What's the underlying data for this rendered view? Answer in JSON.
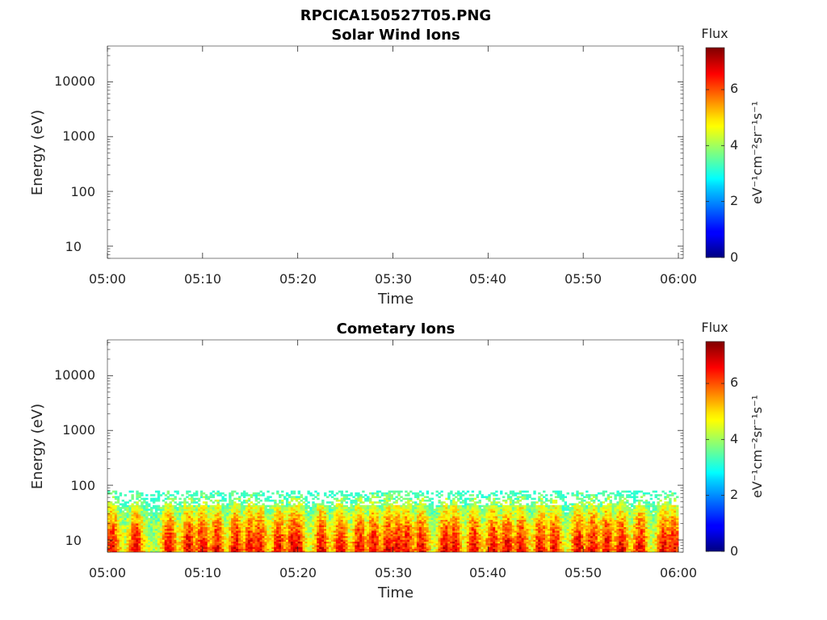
{
  "figure_title": "RPCICA150527T05.PNG",
  "chart_data": [
    {
      "type": "heatmap",
      "title": "Solar Wind Ions",
      "xlabel": "Time",
      "ylabel": "Energy (eV)",
      "x_ticks": [
        "05:00",
        "05:10",
        "05:20",
        "05:30",
        "05:40",
        "05:50",
        "06:00"
      ],
      "y_ticks": [
        "10",
        "100",
        "1000",
        "10000"
      ],
      "y_scale": "log",
      "ylim": [
        6,
        45000
      ],
      "xlim": [
        "05:00",
        "06:00"
      ],
      "colorbar": {
        "label": "Flux",
        "unit": "eV⁻¹cm⁻²sr⁻¹s⁻¹",
        "ticks": [
          "0",
          "2",
          "4",
          "6"
        ],
        "range": [
          0,
          7.5
        ],
        "colormap": "jet"
      },
      "data_present": false
    },
    {
      "type": "heatmap",
      "title": "Cometary Ions",
      "xlabel": "Time",
      "ylabel": "Energy (eV)",
      "x_ticks": [
        "05:00",
        "05:10",
        "05:20",
        "05:30",
        "05:40",
        "05:50",
        "06:00"
      ],
      "y_ticks": [
        "10",
        "100",
        "1000",
        "10000"
      ],
      "y_scale": "log",
      "ylim": [
        6,
        45000
      ],
      "xlim": [
        "05:00",
        "06:00"
      ],
      "colorbar": {
        "label": "Flux",
        "unit": "eV⁻¹cm⁻²sr⁻¹s⁻¹",
        "ticks": [
          "0",
          "2",
          "4",
          "6"
        ],
        "range": [
          0,
          7.5
        ],
        "colormap": "jet"
      },
      "data_present": true,
      "energy_range_eV": [
        6,
        80
      ],
      "peak_minutes": [
        0.5,
        3,
        6.5,
        8.5,
        10,
        11.5,
        13.5,
        15,
        16,
        18,
        19.5,
        20,
        22.5,
        24.5,
        26.5,
        28,
        29.5,
        30.5,
        31.5,
        33,
        35.5,
        36.5,
        38.5,
        40.5,
        42,
        43.5,
        45.5,
        47,
        49.5,
        51,
        52.5,
        54,
        56,
        58.5,
        59.5
      ]
    }
  ]
}
